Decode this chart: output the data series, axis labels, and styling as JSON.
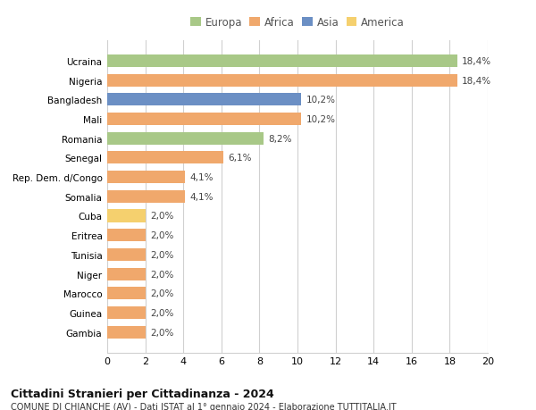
{
  "countries": [
    "Ucraina",
    "Nigeria",
    "Bangladesh",
    "Mali",
    "Romania",
    "Senegal",
    "Rep. Dem. d/Congo",
    "Somalia",
    "Cuba",
    "Eritrea",
    "Tunisia",
    "Niger",
    "Marocco",
    "Guinea",
    "Gambia"
  ],
  "values": [
    18.4,
    18.4,
    10.2,
    10.2,
    8.2,
    6.1,
    4.1,
    4.1,
    2.0,
    2.0,
    2.0,
    2.0,
    2.0,
    2.0,
    2.0
  ],
  "labels": [
    "18,4%",
    "18,4%",
    "10,2%",
    "10,2%",
    "8,2%",
    "6,1%",
    "4,1%",
    "4,1%",
    "2,0%",
    "2,0%",
    "2,0%",
    "2,0%",
    "2,0%",
    "2,0%",
    "2,0%"
  ],
  "continents": [
    "Europa",
    "Africa",
    "Asia",
    "Africa",
    "Europa",
    "Africa",
    "Africa",
    "Africa",
    "America",
    "Africa",
    "Africa",
    "Africa",
    "Africa",
    "Africa",
    "Africa"
  ],
  "colors": {
    "Europa": "#a8c887",
    "Africa": "#f0a86c",
    "Asia": "#6b8fc4",
    "America": "#f5d06e"
  },
  "legend_order": [
    "Europa",
    "Africa",
    "Asia",
    "America"
  ],
  "xlim": [
    0,
    20
  ],
  "xticks": [
    0,
    2,
    4,
    6,
    8,
    10,
    12,
    14,
    16,
    18,
    20
  ],
  "title": "Cittadini Stranieri per Cittadinanza - 2024",
  "subtitle": "COMUNE DI CHIANCHE (AV) - Dati ISTAT al 1° gennaio 2024 - Elaborazione TUTTITALIA.IT",
  "background_color": "#ffffff",
  "grid_color": "#d0d0d0",
  "label_color": "#444444",
  "bar_height": 0.65
}
